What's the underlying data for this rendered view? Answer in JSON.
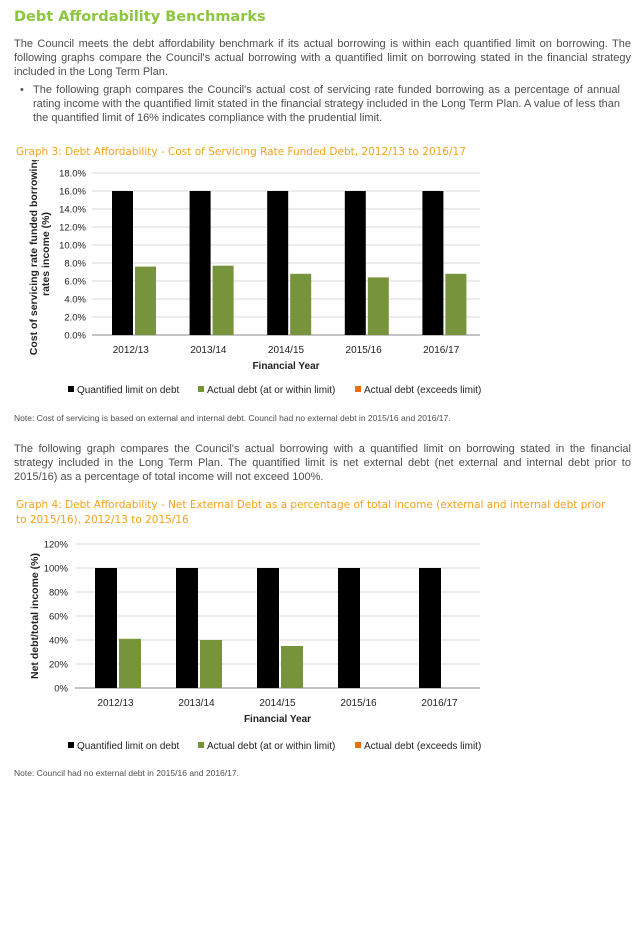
{
  "heading": "Debt Affordability Benchmarks",
  "intro": "The Council meets the debt affordability benchmark if its actual borrowing is within each quantified limit on borrowing. The following graphs compare the Council's actual borrowing with a quantified limit on borrowing stated in the financial strategy included in the Long Term Plan.",
  "bullet": "The following graph compares the Council's actual cost of servicing rate funded borrowing as a percentage of annual rating income with the quantified limit stated in the financial strategy included in the Long Term Plan. A value of less than the quantified limit of 16% indicates compliance with the prudential limit.",
  "graph3_title": "Graph 3: Debt Affordability - Cost of Servicing Rate Funded Debt, 2012/13 to 2016/17",
  "note1": "Note: Cost of servicing is based on external and internal debt.  Council had no external debt in 2015/16 and 2016/17.",
  "para2": "The following graph compares the Council's actual borrowing with a quantified limit on borrowing stated in the financial strategy included in the Long Term Plan. The quantified limit is net external debt (net external and internal debt prior to 2015/16) as a percentage of total income will not exceed 100%.",
  "graph4_title": "Graph 4:  Debt Affordability - Net External Debt as a percentage of total income (external and internal debt prior to 2015/16), 2012/13 to 2015/16",
  "note2": "Note: Council had no external debt in 2015/16 and 2016/17.",
  "colors": {
    "heading": "#8cc63f",
    "title": "#f7a11a",
    "limit": "#000000",
    "within": "#77933c",
    "exceeds": "#f26c0f"
  },
  "chart_data": [
    {
      "type": "bar",
      "categories": [
        "2012/13",
        "2013/14",
        "2014/15",
        "2015/16",
        "2016/17"
      ],
      "series": [
        {
          "name": "Quantified limit on debt",
          "values": [
            16,
            16,
            16,
            16,
            16
          ]
        },
        {
          "name": "Actual debt (at or within limit)",
          "values": [
            7.6,
            7.7,
            6.8,
            6.4,
            6.8
          ]
        },
        {
          "name": "Actual debt (exceeds limit)",
          "values": [
            0,
            0,
            0,
            0,
            0
          ]
        }
      ],
      "yticks": [
        "0.0%",
        "2.0%",
        "4.0%",
        "6.0%",
        "8.0%",
        "10.0%",
        "12.0%",
        "14.0%",
        "16.0%",
        "18.0%"
      ],
      "ylim": [
        0,
        18
      ],
      "ylabel_lines": [
        "Cost of servicing rate funded borrowing/",
        "rates income (%)"
      ],
      "xlabel": "Financial Year",
      "legend": "bottom",
      "grid": true
    },
    {
      "type": "bar",
      "categories": [
        "2012/13",
        "2013/14",
        "2014/15",
        "2015/16",
        "2016/17"
      ],
      "series": [
        {
          "name": "Quantified limit on debt",
          "values": [
            100,
            100,
            100,
            100,
            100
          ]
        },
        {
          "name": "Actual debt (at or within limit)",
          "values": [
            41,
            40,
            35,
            0,
            0
          ]
        },
        {
          "name": "Actual debt (exceeds limit)",
          "values": [
            0,
            0,
            0,
            0,
            0
          ]
        }
      ],
      "yticks": [
        "0%",
        "20%",
        "40%",
        "60%",
        "80%",
        "100%",
        "120%"
      ],
      "ylim": [
        0,
        120
      ],
      "ylabel_lines": [
        "Net debt/total income (%)"
      ],
      "xlabel": "Financial Year",
      "legend": "bottom",
      "grid": true
    }
  ]
}
